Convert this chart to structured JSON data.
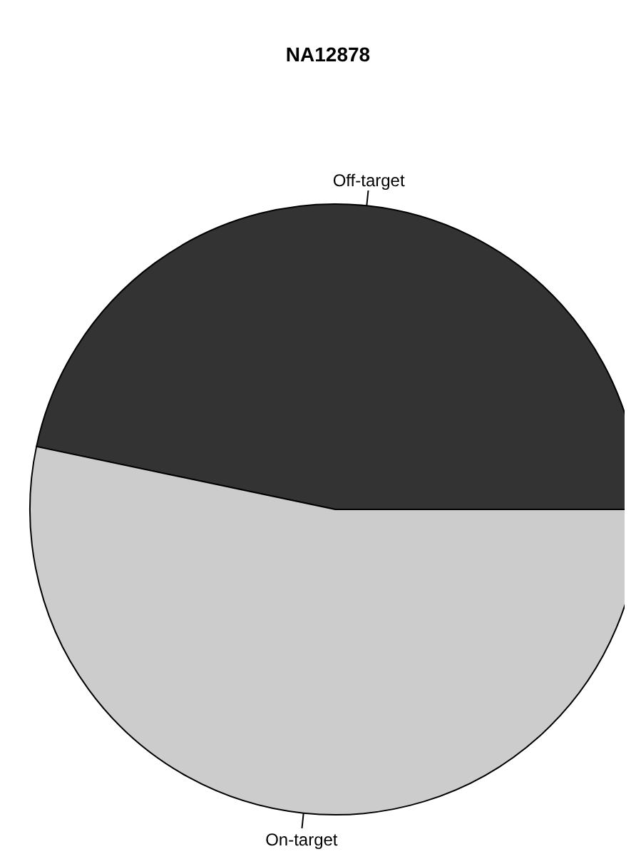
{
  "chart_data": {
    "type": "pie",
    "title": "NA12878",
    "categories": [
      "Off-target",
      "On-target"
    ],
    "values": [
      46.7,
      53.3
    ],
    "colors": [
      "#333333",
      "#cccccc"
    ]
  }
}
